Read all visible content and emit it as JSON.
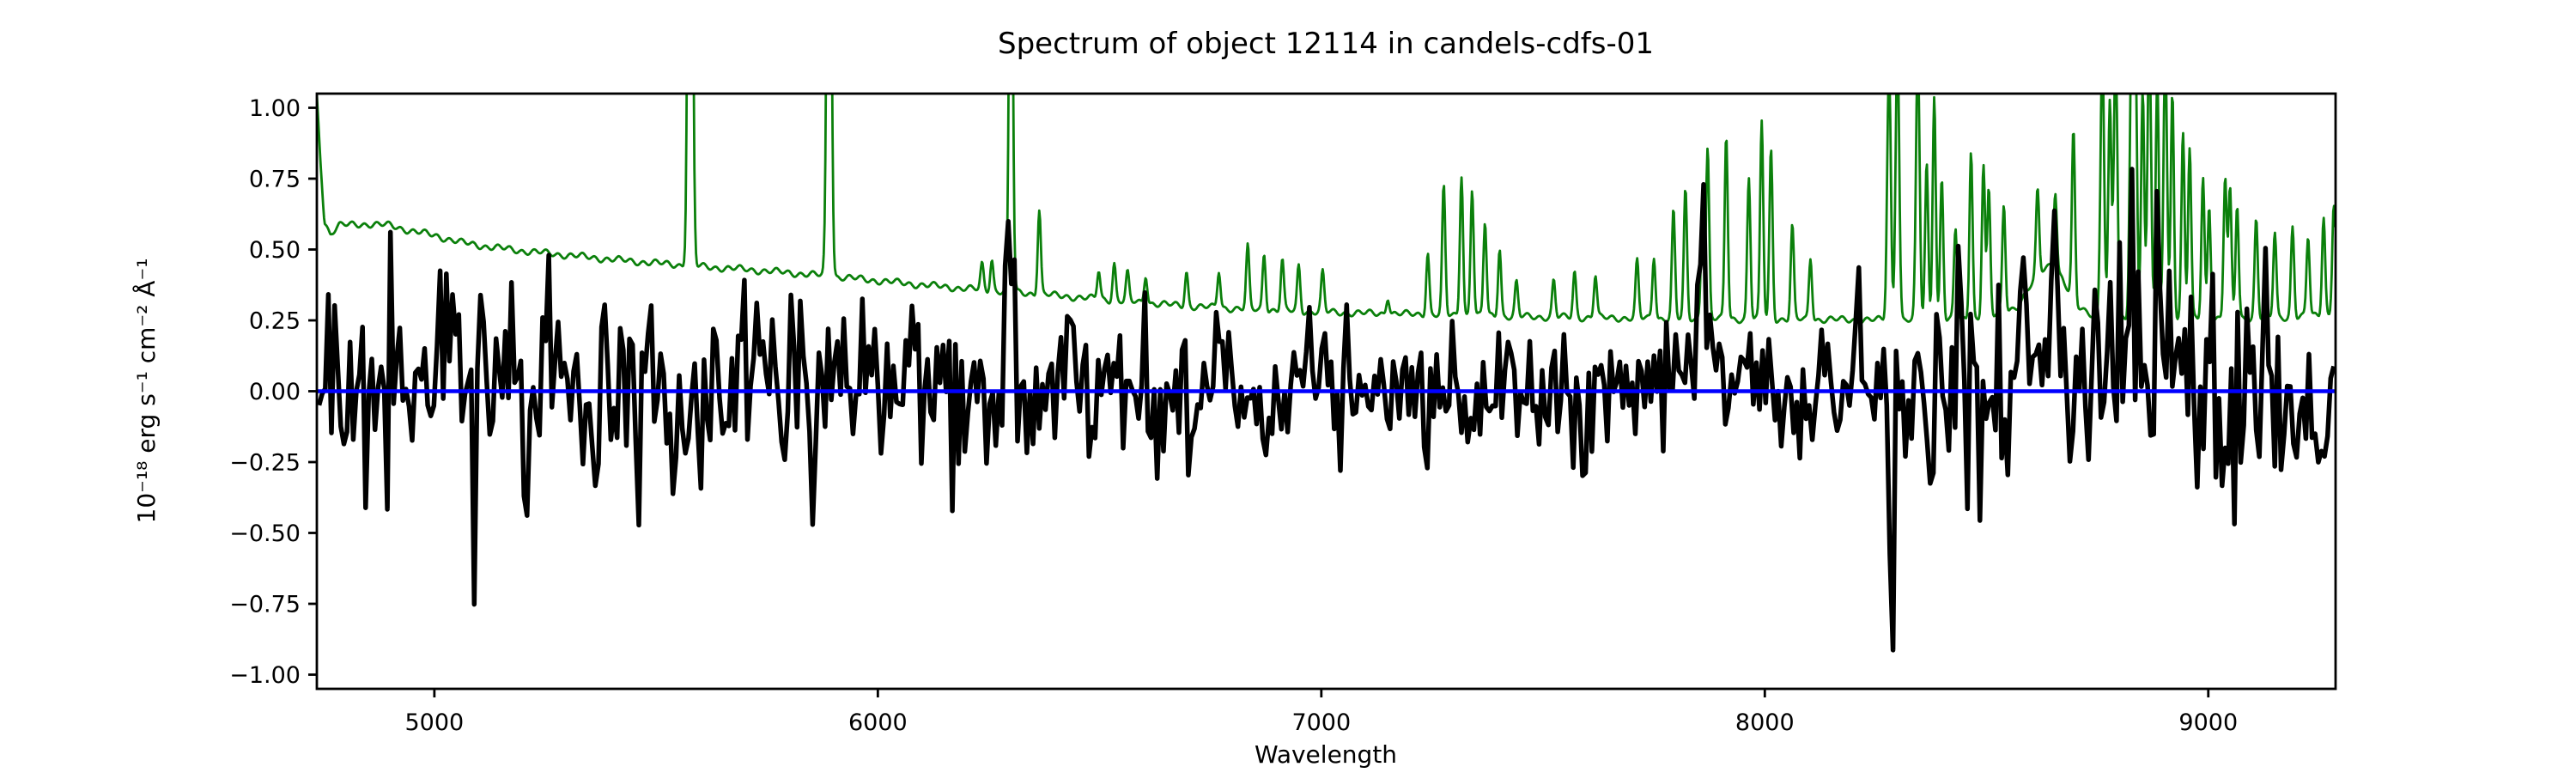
{
  "figure": {
    "background": "#ffffff",
    "axis_color": "#000000"
  },
  "chart_data": {
    "type": "line",
    "title": "Spectrum of object 12114 in candels-cdfs-01",
    "xlabel": "Wavelength",
    "ylabel": "10⁻¹⁸ erg s⁻¹ cm⁻² Å⁻¹",
    "xlim": [
      4735,
      9287
    ],
    "ylim": [
      -1.05,
      1.05
    ],
    "grid": false,
    "legend": null,
    "x_ticks": [
      {
        "value": 5000,
        "label": "5000"
      },
      {
        "value": 6000,
        "label": "6000"
      },
      {
        "value": 7000,
        "label": "7000"
      },
      {
        "value": 8000,
        "label": "8000"
      },
      {
        "value": 9000,
        "label": "9000"
      }
    ],
    "y_ticks": [
      {
        "value": 1.0,
        "label": "1.00"
      },
      {
        "value": 0.75,
        "label": "0.75"
      },
      {
        "value": 0.5,
        "label": "0.50"
      },
      {
        "value": 0.25,
        "label": "0.25"
      },
      {
        "value": 0.0,
        "label": "0.00"
      },
      {
        "value": -0.25,
        "label": "−0.25"
      },
      {
        "value": -0.5,
        "label": "−0.50"
      },
      {
        "value": -0.75,
        "label": "−0.75"
      },
      {
        "value": -1.0,
        "label": "−1.00"
      }
    ],
    "series": [
      {
        "name": "observed-flux",
        "kind": "noisy-spectrum",
        "color": "#000000",
        "line_width": 5.5,
        "x_start": 4740,
        "x_end": 9286,
        "x_step": 7,
        "noise_seed": 12114,
        "noise_sigma_envelope": [
          [
            4740,
            0.18
          ],
          [
            4950,
            0.2
          ],
          [
            5150,
            0.19
          ],
          [
            5600,
            0.17
          ],
          [
            6000,
            0.16
          ],
          [
            6400,
            0.15
          ],
          [
            6800,
            0.135
          ],
          [
            7200,
            0.125
          ],
          [
            7600,
            0.13
          ],
          [
            8000,
            0.135
          ],
          [
            8250,
            0.17
          ],
          [
            8600,
            0.19
          ],
          [
            8900,
            0.2
          ],
          [
            9287,
            0.17
          ]
        ],
        "features": [
          [
            4905,
            0.5,
            6
          ],
          [
            5041,
            0.48,
            6
          ],
          [
            5090,
            -0.35,
            6
          ],
          [
            5560,
            -0.35,
            6
          ],
          [
            6290,
            0.5,
            5
          ],
          [
            6440,
            0.3,
            6
          ],
          [
            7589,
            -0.42,
            6
          ],
          [
            7858,
            0.4,
            7
          ],
          [
            8286,
            -0.85,
            5
          ],
          [
            8370,
            -0.45,
            5
          ],
          [
            8440,
            0.35,
            6
          ],
          [
            8583,
            0.35,
            10
          ],
          [
            8650,
            0.45,
            12
          ],
          [
            8744,
            0.4,
            6
          ],
          [
            8827,
            0.75,
            6
          ],
          [
            8889,
            0.55,
            6
          ],
          [
            8920,
            0.42,
            7
          ],
          [
            9000,
            0.4,
            6
          ],
          [
            9130,
            0.4,
            7
          ]
        ]
      },
      {
        "name": "sky-noise-spectrum",
        "kind": "sky-spectrum",
        "color": "#0b800b",
        "line_width": 2.8,
        "x_step": 1.8,
        "continuum": [
          [
            4735,
            1.04
          ],
          [
            4742,
            0.85
          ],
          [
            4752,
            0.6
          ],
          [
            4765,
            0.555
          ],
          [
            4785,
            0.585
          ],
          [
            4850,
            0.59
          ],
          [
            4900,
            0.585
          ],
          [
            4950,
            0.565
          ],
          [
            5000,
            0.55
          ],
          [
            5060,
            0.525
          ],
          [
            5120,
            0.51
          ],
          [
            5200,
            0.495
          ],
          [
            5300,
            0.48
          ],
          [
            5400,
            0.465
          ],
          [
            5500,
            0.452
          ],
          [
            5600,
            0.44
          ],
          [
            5700,
            0.43
          ],
          [
            5800,
            0.418
          ],
          [
            5900,
            0.405
          ],
          [
            6000,
            0.39
          ],
          [
            6100,
            0.375
          ],
          [
            6200,
            0.362
          ],
          [
            6300,
            0.35
          ],
          [
            6400,
            0.338
          ],
          [
            6500,
            0.325
          ],
          [
            6600,
            0.312
          ],
          [
            6700,
            0.3
          ],
          [
            6800,
            0.292
          ],
          [
            6900,
            0.285
          ],
          [
            7000,
            0.28
          ],
          [
            7100,
            0.275
          ],
          [
            7200,
            0.272
          ],
          [
            7300,
            0.268
          ],
          [
            7400,
            0.265
          ],
          [
            7500,
            0.262
          ],
          [
            7600,
            0.26
          ],
          [
            7700,
            0.258
          ],
          [
            7800,
            0.256
          ],
          [
            7900,
            0.255
          ],
          [
            8000,
            0.254
          ],
          [
            8100,
            0.253
          ],
          [
            8200,
            0.252
          ],
          [
            8300,
            0.251
          ],
          [
            8400,
            0.251
          ],
          [
            8500,
            0.255
          ],
          [
            8570,
            0.3
          ],
          [
            8620,
            0.42
          ],
          [
            8645,
            0.45
          ],
          [
            8670,
            0.4
          ],
          [
            8700,
            0.3
          ],
          [
            8750,
            0.265
          ],
          [
            8800,
            0.26
          ],
          [
            8900,
            0.258
          ],
          [
            9000,
            0.256
          ],
          [
            9100,
            0.258
          ],
          [
            9200,
            0.262
          ],
          [
            9287,
            0.27
          ]
        ],
        "continuum_jitter": 0.008,
        "emission_lines": [
          [
            5577,
            3.0,
            4.5
          ],
          [
            5890,
            2.3,
            4.5
          ],
          [
            6235,
            0.09,
            3.5
          ],
          [
            6257,
            0.11,
            3.5
          ],
          [
            6300,
            1.7,
            4.0
          ],
          [
            6364,
            0.3,
            3.5
          ],
          [
            6498,
            0.1,
            3.5
          ],
          [
            6533,
            0.13,
            3.5
          ],
          [
            6563,
            0.1,
            3.5
          ],
          [
            6604,
            0.1,
            3.5
          ],
          [
            6696,
            0.12,
            3.5
          ],
          [
            6769,
            0.13,
            3.5
          ],
          [
            6834,
            0.22,
            3.5
          ],
          [
            6871,
            0.2,
            3.5
          ],
          [
            6912,
            0.18,
            3.5
          ],
          [
            6949,
            0.16,
            3.5
          ],
          [
            7003,
            0.14,
            3.5
          ],
          [
            7150,
            0.06,
            3.5
          ],
          [
            7240,
            0.22,
            3.5
          ],
          [
            7276,
            0.45,
            3.5
          ],
          [
            7316,
            0.5,
            3.5
          ],
          [
            7340,
            0.45,
            3.5
          ],
          [
            7369,
            0.33,
            3.5
          ],
          [
            7402,
            0.24,
            3.5
          ],
          [
            7440,
            0.12,
            3.5
          ],
          [
            7524,
            0.13,
            3.5
          ],
          [
            7571,
            0.16,
            3.5
          ],
          [
            7618,
            0.15,
            3.5
          ],
          [
            7712,
            0.2,
            3.5
          ],
          [
            7750,
            0.22,
            3.5
          ],
          [
            7794,
            0.38,
            3.5
          ],
          [
            7821,
            0.45,
            3.5
          ],
          [
            7859,
            0.33,
            3.5
          ],
          [
            7871,
            0.6,
            3.5
          ],
          [
            7913,
            0.65,
            3.5
          ],
          [
            7964,
            0.5,
            3.5
          ],
          [
            7993,
            0.7,
            3.5
          ],
          [
            8014,
            0.6,
            3.5
          ],
          [
            8062,
            0.33,
            3.5
          ],
          [
            8103,
            0.22,
            3.5
          ],
          [
            8280,
            0.9,
            4.0
          ],
          [
            8299,
            1.0,
            4.0
          ],
          [
            8345,
            0.95,
            4.0
          ],
          [
            8365,
            0.55,
            3.5
          ],
          [
            8382,
            0.8,
            3.5
          ],
          [
            8399,
            0.5,
            3.5
          ],
          [
            8430,
            0.32,
            3.5
          ],
          [
            8465,
            0.6,
            3.5
          ],
          [
            8493,
            0.55,
            3.5
          ],
          [
            8505,
            0.45,
            3.5
          ],
          [
            8539,
            0.38,
            3.5
          ],
          [
            8615,
            0.3,
            3.5
          ],
          [
            8655,
            0.28,
            3.5
          ],
          [
            8696,
            0.6,
            3.5
          ],
          [
            8761,
            0.95,
            4.0
          ],
          [
            8778,
            0.75,
            3.5
          ],
          [
            8791,
            0.95,
            4.0
          ],
          [
            8827,
            1.0,
            4.0
          ],
          [
            8836,
            0.9,
            3.5
          ],
          [
            8852,
            0.8,
            3.5
          ],
          [
            8867,
            1.0,
            4.0
          ],
          [
            8885,
            0.85,
            3.5
          ],
          [
            8903,
            0.95,
            4.0
          ],
          [
            8919,
            0.8,
            3.5
          ],
          [
            8943,
            0.65,
            3.5
          ],
          [
            8958,
            0.6,
            3.5
          ],
          [
            8988,
            0.5,
            3.5
          ],
          [
            9002,
            0.4,
            3.5
          ],
          [
            9038,
            0.5,
            3.5
          ],
          [
            9049,
            0.45,
            3.5
          ],
          [
            9065,
            0.4,
            3.5
          ],
          [
            9108,
            0.35,
            3.5
          ],
          [
            9150,
            0.3,
            3.5
          ],
          [
            9190,
            0.32,
            3.5
          ],
          [
            9225,
            0.28,
            3.5
          ],
          [
            9260,
            0.35,
            3.5
          ],
          [
            9283,
            0.4,
            3.5
          ]
        ]
      },
      {
        "name": "zero-flux-line",
        "kind": "hline",
        "color": "#0000ff",
        "line_width": 4.5,
        "y": 0.0
      }
    ]
  }
}
